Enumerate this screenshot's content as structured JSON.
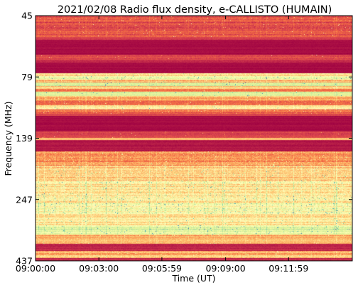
{
  "chart_data": {
    "type": "heatmap",
    "title": "2021/02/08  Radio flux density, e-CALLISTO (HUMAIN)",
    "xlabel": "Time (UT)",
    "ylabel": "Frequency (MHz)",
    "x_tick_labels": [
      "09:00:00",
      "09:03:00",
      "09:05:59",
      "09:09:00",
      "09:11:59"
    ],
    "x_tick_seconds": [
      0,
      180,
      359,
      540,
      719
    ],
    "x_range_seconds": [
      0,
      900
    ],
    "y_tick_labels": [
      "45",
      "79",
      "139",
      "247",
      "437"
    ],
    "y_range_mhz": [
      45,
      437
    ],
    "y_inverted": true,
    "colormap": "Spectral_r",
    "bands": [
      {
        "f0": 45,
        "f1": 79,
        "level": 0.14,
        "noise": 0.09,
        "spikes": 0.05
      },
      {
        "f0": 79,
        "f1": 84,
        "level": 0.1,
        "noise": 0.05,
        "spikes": 0.0
      },
      {
        "f0": 84,
        "f1": 108,
        "level": 0.02,
        "noise": 0.02,
        "spikes": 0.0
      },
      {
        "f0": 108,
        "f1": 116,
        "level": 0.12,
        "noise": 0.07,
        "spikes": 0.02
      },
      {
        "f0": 116,
        "f1": 120,
        "level": 0.06,
        "noise": 0.04,
        "spikes": 0.0
      },
      {
        "f0": 120,
        "f1": 137,
        "level": 0.02,
        "noise": 0.02,
        "spikes": 0.0
      },
      {
        "f0": 137,
        "f1": 142,
        "level": 0.38,
        "noise": 0.12,
        "spikes": 0.1
      },
      {
        "f0": 142,
        "f1": 147,
        "level": 0.55,
        "noise": 0.12,
        "spikes": 0.12
      },
      {
        "f0": 147,
        "f1": 152,
        "level": 0.3,
        "noise": 0.12,
        "spikes": 0.08
      },
      {
        "f0": 152,
        "f1": 157,
        "level": 0.62,
        "noise": 0.08,
        "spikes": 0.05
      },
      {
        "f0": 157,
        "f1": 162,
        "level": 0.34,
        "noise": 0.1,
        "spikes": 0.05
      },
      {
        "f0": 162,
        "f1": 167,
        "level": 0.24,
        "noise": 0.08,
        "spikes": 0.05
      },
      {
        "f0": 167,
        "f1": 173,
        "level": 0.6,
        "noise": 0.06,
        "spikes": 0.05
      },
      {
        "f0": 173,
        "f1": 180,
        "level": 0.3,
        "noise": 0.1,
        "spikes": 0.08
      },
      {
        "f0": 180,
        "f1": 188,
        "level": 0.2,
        "noise": 0.1,
        "spikes": 0.06
      },
      {
        "f0": 188,
        "f1": 195,
        "level": 0.42,
        "noise": 0.1,
        "spikes": 0.08
      },
      {
        "f0": 195,
        "f1": 202,
        "level": 0.18,
        "noise": 0.1,
        "spikes": 0.06
      },
      {
        "f0": 202,
        "f1": 205,
        "level": 0.1,
        "noise": 0.05,
        "spikes": 0.0
      },
      {
        "f0": 205,
        "f1": 230,
        "level": 0.02,
        "noise": 0.02,
        "spikes": 0.0
      },
      {
        "f0": 230,
        "f1": 240,
        "level": 0.12,
        "noise": 0.06,
        "spikes": 0.02
      },
      {
        "f0": 240,
        "f1": 244,
        "level": 0.36,
        "noise": 0.06,
        "spikes": 0.0
      },
      {
        "f0": 244,
        "f1": 262,
        "level": 0.04,
        "noise": 0.03,
        "spikes": 0.0
      },
      {
        "f0": 262,
        "f1": 285,
        "level": 0.28,
        "noise": 0.13,
        "spikes": 0.08
      },
      {
        "f0": 285,
        "f1": 310,
        "level": 0.36,
        "noise": 0.14,
        "spikes": 0.15
      },
      {
        "f0": 310,
        "f1": 345,
        "level": 0.44,
        "noise": 0.15,
        "spikes": 0.22
      },
      {
        "f0": 345,
        "f1": 362,
        "level": 0.5,
        "noise": 0.14,
        "spikes": 0.2
      },
      {
        "f0": 362,
        "f1": 380,
        "level": 0.4,
        "noise": 0.13,
        "spikes": 0.15
      },
      {
        "f0": 380,
        "f1": 395,
        "level": 0.58,
        "noise": 0.1,
        "spikes": 0.1
      },
      {
        "f0": 395,
        "f1": 410,
        "level": 0.3,
        "noise": 0.1,
        "spikes": 0.05
      },
      {
        "f0": 410,
        "f1": 421,
        "level": 0.06,
        "noise": 0.04,
        "spikes": 0.0
      },
      {
        "f0": 421,
        "f1": 432,
        "level": 0.32,
        "noise": 0.12,
        "spikes": 0.05
      },
      {
        "f0": 432,
        "f1": 437,
        "level": 0.06,
        "noise": 0.04,
        "spikes": 0.0
      }
    ]
  }
}
